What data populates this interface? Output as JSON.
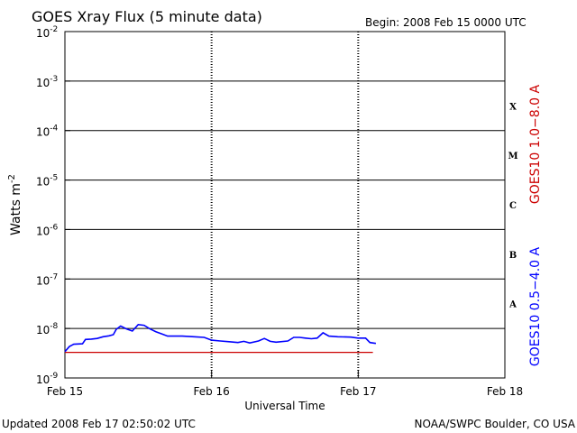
{
  "chart_data": {
    "type": "line",
    "title": "GOES Xray Flux (5 minute data)",
    "begin_label": "Begin:  2008 Feb 15 0000 UTC",
    "ylabel": "Watts m",
    "ylabel_exponent": "-2",
    "xlabel": "Universal Time",
    "x_tick_labels": [
      "Feb 15",
      "Feb 16",
      "Feb 17",
      "Feb 18"
    ],
    "x_domain_days": [
      0,
      3
    ],
    "y_scale": "log",
    "ylim": [
      1e-09,
      0.01
    ],
    "y_tick_labels": [
      {
        "base": "10",
        "exp": "-2"
      },
      {
        "base": "10",
        "exp": "-3"
      },
      {
        "base": "10",
        "exp": "-4"
      },
      {
        "base": "10",
        "exp": "-5"
      },
      {
        "base": "10",
        "exp": "-6"
      },
      {
        "base": "10",
        "exp": "-7"
      },
      {
        "base": "10",
        "exp": "-8"
      },
      {
        "base": "10",
        "exp": "-9"
      }
    ],
    "flare_classes": [
      "X",
      "M",
      "C",
      "B",
      "A"
    ],
    "series": [
      {
        "name": "GOES10 1.0−8.0 A",
        "color": "#cc0000",
        "points": [
          [
            0,
            3.3e-09
          ],
          [
            2.1,
            3.3e-09
          ]
        ]
      },
      {
        "name": "GOES10 0.5−4.0 A",
        "color": "#0000ff",
        "points": [
          [
            0.0,
            3.4e-09
          ],
          [
            0.03,
            4.3e-09
          ],
          [
            0.06,
            4.8e-09
          ],
          [
            0.12,
            4.9e-09
          ],
          [
            0.14,
            6e-09
          ],
          [
            0.18,
            6.1e-09
          ],
          [
            0.22,
            6.3e-09
          ],
          [
            0.26,
            6.8e-09
          ],
          [
            0.3,
            7.1e-09
          ],
          [
            0.33,
            7.5e-09
          ],
          [
            0.35,
            9.6e-09
          ],
          [
            0.38,
            1.12e-08
          ],
          [
            0.42,
            9.8e-09
          ],
          [
            0.46,
            8.9e-09
          ],
          [
            0.5,
            1.2e-08
          ],
          [
            0.54,
            1.16e-08
          ],
          [
            0.58,
            9.8e-09
          ],
          [
            0.62,
            8.6e-09
          ],
          [
            0.66,
            7.8e-09
          ],
          [
            0.7,
            7e-09
          ],
          [
            0.8,
            7e-09
          ],
          [
            0.88,
            6.8e-09
          ],
          [
            0.95,
            6.6e-09
          ],
          [
            1.0,
            5.8e-09
          ],
          [
            1.06,
            5.6e-09
          ],
          [
            1.12,
            5.4e-09
          ],
          [
            1.18,
            5.2e-09
          ],
          [
            1.22,
            5.5e-09
          ],
          [
            1.26,
            5.1e-09
          ],
          [
            1.32,
            5.6e-09
          ],
          [
            1.36,
            6.3e-09
          ],
          [
            1.4,
            5.5e-09
          ],
          [
            1.44,
            5.3e-09
          ],
          [
            1.52,
            5.6e-09
          ],
          [
            1.56,
            6.6e-09
          ],
          [
            1.6,
            6.6e-09
          ],
          [
            1.64,
            6.4e-09
          ],
          [
            1.68,
            6.2e-09
          ],
          [
            1.72,
            6.4e-09
          ],
          [
            1.76,
            8.2e-09
          ],
          [
            1.8,
            7e-09
          ],
          [
            1.86,
            6.8e-09
          ],
          [
            1.95,
            6.7e-09
          ],
          [
            2.0,
            6.4e-09
          ],
          [
            2.05,
            6.4e-09
          ],
          [
            2.08,
            5.2e-09
          ],
          [
            2.12,
            5e-09
          ]
        ]
      }
    ]
  },
  "footer": {
    "updated": "Updated 2008 Feb 17 02:50:02 UTC",
    "source": "NOAA/SWPC Boulder, CO USA"
  }
}
